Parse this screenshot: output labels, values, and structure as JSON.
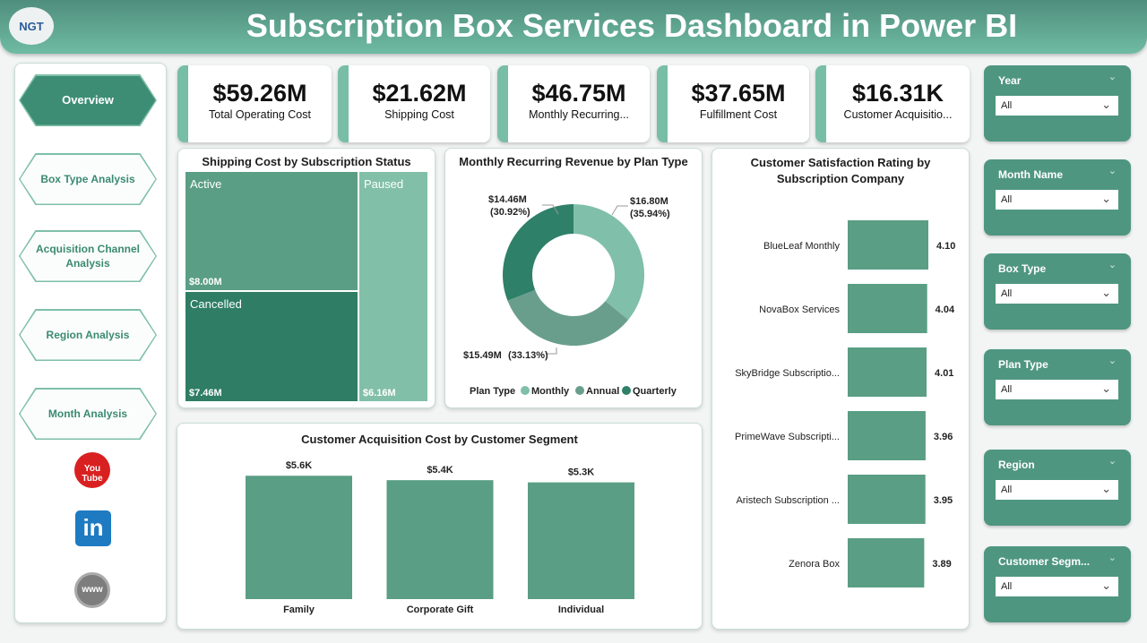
{
  "header": {
    "title": "Subscription Box Services Dashboard in Power BI",
    "logo": "NGT"
  },
  "nav": {
    "items": [
      {
        "label": "Overview",
        "active": true
      },
      {
        "label": "Box Type Analysis"
      },
      {
        "label": "Acquisition Channel Analysis"
      },
      {
        "label": "Region Analysis"
      },
      {
        "label": "Month Analysis"
      }
    ],
    "social": [
      "youtube-icon",
      "linkedin-icon",
      "globe-icon"
    ],
    "youtube_text": "You Tube",
    "linkedin_text": "in",
    "globe_text": "www"
  },
  "kpis": [
    {
      "value": "$59.26M",
      "label": "Total Operating Cost"
    },
    {
      "value": "$21.62M",
      "label": "Shipping Cost"
    },
    {
      "value": "$46.75M",
      "label": "Monthly Recurring..."
    },
    {
      "value": "$37.65M",
      "label": "Fulfillment Cost"
    },
    {
      "value": "$16.31K",
      "label": "Customer Acquisitio..."
    }
  ],
  "treemap": {
    "title": "Shipping Cost by Subscription Status",
    "items": [
      {
        "name": "Active",
        "value": "$8.00M",
        "color": "#5a9e85"
      },
      {
        "name": "Cancelled",
        "value": "$7.46M",
        "color": "#2e7d64"
      },
      {
        "name": "Paused",
        "value": "$6.16M",
        "color": "#82bfa9"
      }
    ]
  },
  "chart_data": [
    {
      "type": "pie",
      "title": "Monthly Recurring Revenue by Plan Type",
      "legend_title": "Plan Type",
      "legend_position": "bottom",
      "donut": true,
      "slices": [
        {
          "name": "Monthly",
          "value": 16.8,
          "label": "$16.80M",
          "pct": "(35.94%)",
          "color": "#80bfa9"
        },
        {
          "name": "Annual",
          "value": 15.49,
          "label": "$15.49M",
          "pct": "(33.13%)",
          "color": "#6a9e8c"
        },
        {
          "name": "Quarterly",
          "value": 14.46,
          "label": "$14.46M",
          "pct": "(30.92%)",
          "color": "#2f8068"
        }
      ]
    },
    {
      "type": "bar",
      "orientation": "horizontal",
      "title": "Customer Satisfaction Rating by Subscription Company",
      "categories": [
        "BlueLeaf Monthly",
        "NovaBox Services",
        "SkyBridge Subscriptio...",
        "PrimeWave Subscripti...",
        "Aristech Subscription ...",
        "Zenora Box"
      ],
      "values": [
        4.1,
        4.04,
        4.01,
        3.96,
        3.95,
        3.89
      ],
      "labels": [
        "4.10",
        "4.04",
        "4.01",
        "3.96",
        "3.95",
        "3.89"
      ],
      "color": "#5a9e85"
    },
    {
      "type": "bar",
      "title": "Customer Acquisition Cost by Customer Segment",
      "categories": [
        "Family",
        "Corporate Gift",
        "Individual"
      ],
      "values": [
        5.6,
        5.4,
        5.3
      ],
      "labels": [
        "$5.6K",
        "$5.4K",
        "$5.3K"
      ],
      "unit": "K",
      "color": "#5a9e85"
    }
  ],
  "slicers": [
    {
      "label": "Year",
      "value": "All"
    },
    {
      "label": "Month Name",
      "value": "All"
    },
    {
      "label": "Box Type",
      "value": "All"
    },
    {
      "label": "Plan Type",
      "value": "All"
    },
    {
      "label": "Region",
      "value": "All"
    },
    {
      "label": "Customer Segm...",
      "value": "All"
    }
  ]
}
